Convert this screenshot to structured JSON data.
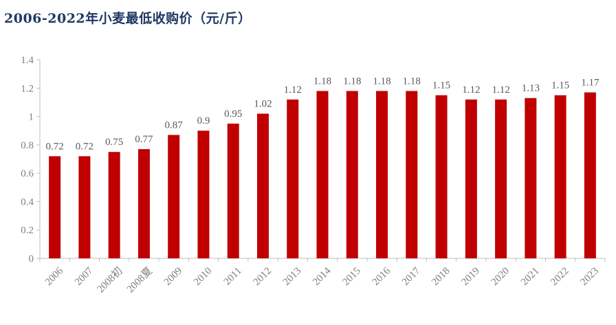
{
  "title": "2006-2022年小麦最低收购价（元/斤）",
  "colors": {
    "bar": "#c00000",
    "axis": "#bfbfbf",
    "title": "#1f3864",
    "tick_text": "#7f7f7f"
  },
  "chart_data": {
    "type": "bar",
    "title": "2006-2022年小麦最低收购价（元/斤）",
    "categories": [
      "2006",
      "2007",
      "2008初",
      "2008夏",
      "2009",
      "2010",
      "2011",
      "2012",
      "2013",
      "2014",
      "2015",
      "2016",
      "2017",
      "2018",
      "2019",
      "2020",
      "2021",
      "2022",
      "2023"
    ],
    "values": [
      0.72,
      0.72,
      0.75,
      0.77,
      0.87,
      0.9,
      0.95,
      1.02,
      1.12,
      1.18,
      1.18,
      1.18,
      1.18,
      1.15,
      1.12,
      1.12,
      1.13,
      1.15,
      1.17
    ],
    "value_labels": [
      "0.72",
      "0.72",
      "0.75",
      "0.77",
      "0.87",
      "0.9",
      "0.95",
      "1.02",
      "1.12",
      "1.18",
      "1.18",
      "1.18",
      "1.18",
      "1.15",
      "1.12",
      "1.12",
      "1.13",
      "1.15",
      "1.17"
    ],
    "ylim": [
      0,
      1.4
    ],
    "yticks": [
      0,
      0.2,
      0.4,
      0.6,
      0.8,
      1,
      1.2,
      1.4
    ],
    "ytick_labels": [
      "0",
      "0.2",
      "0.4",
      "0.6",
      "0.8",
      "1",
      "1.2",
      "1.4"
    ],
    "xlabel": "",
    "ylabel": "",
    "grid": false,
    "legend": "none"
  }
}
